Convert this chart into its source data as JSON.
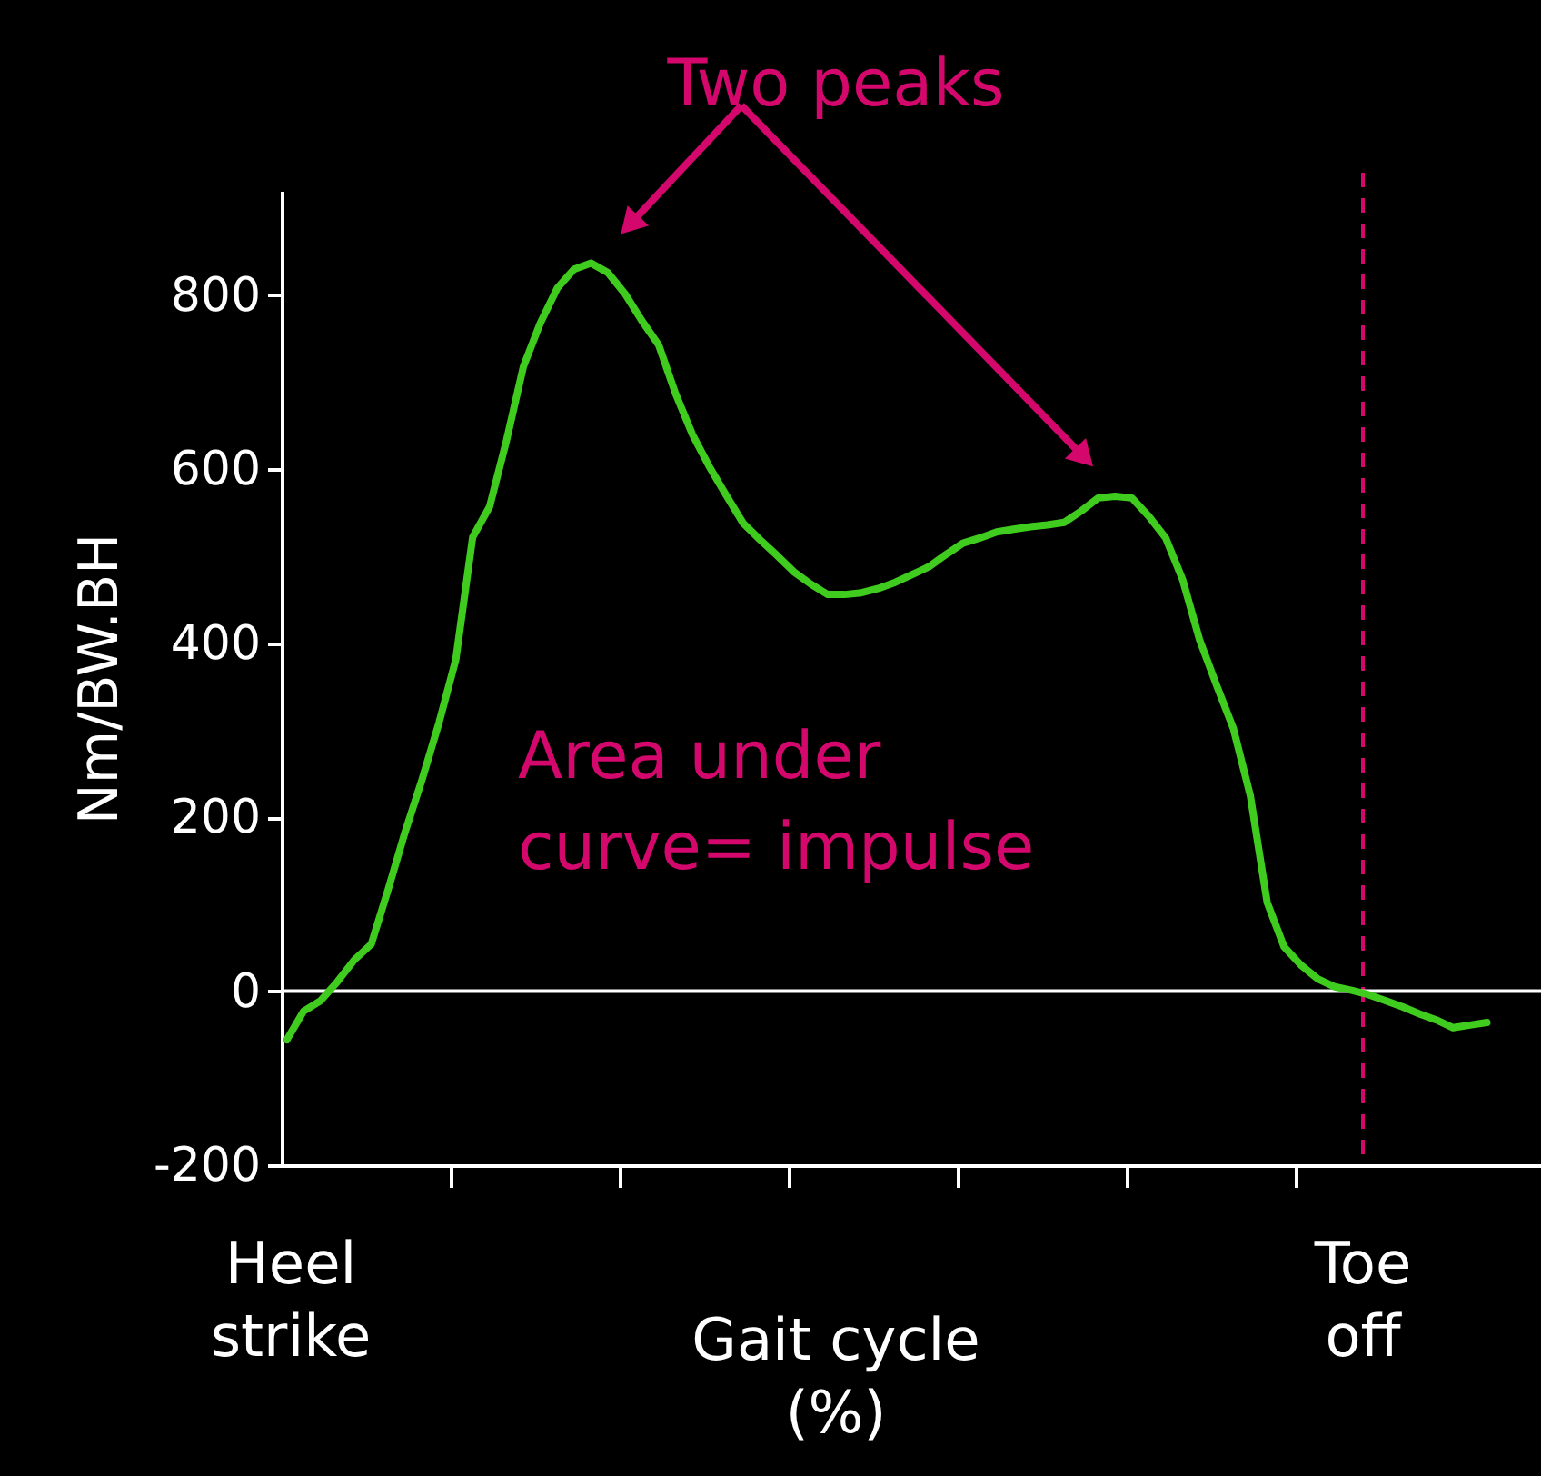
{
  "chart_data": {
    "type": "line",
    "ylabel": "Nm/BW.BH",
    "xlabel": "Gait cycle (%)",
    "annotations": [
      "Two peaks",
      "Area under curve= impulse",
      "Heel strike",
      "Toe off"
    ],
    "categories": [
      null,
      null,
      null,
      null,
      null,
      null,
      null,
      null,
      null,
      null,
      null,
      null,
      null,
      null,
      null,
      null,
      null,
      null,
      null,
      null,
      null,
      null,
      null,
      null,
      null,
      null,
      null,
      null,
      null,
      null,
      null,
      null,
      null,
      null,
      null,
      null,
      null,
      null,
      null,
      null,
      null,
      null,
      null,
      null,
      null,
      null,
      null,
      null,
      null,
      null,
      null,
      null,
      null,
      null,
      null,
      null,
      null,
      null,
      null,
      null,
      null,
      null,
      null,
      null,
      null,
      null,
      null,
      null,
      null,
      null,
      null,
      null
    ],
    "series": [
      {
        "color": "#3fcc1e",
        "values": [
          -56,
          -23,
          -11,
          11,
          36,
          54,
          117,
          183,
          243,
          308,
          381,
          522,
          557,
          633,
          718,
          768,
          808,
          830,
          837,
          826,
          802,
          771,
          743,
          687,
          640,
          603,
          570,
          538,
          519,
          501,
          482,
          468,
          456,
          456,
          458,
          463,
          470,
          479,
          488,
          502,
          515,
          521,
          528,
          531,
          534,
          536,
          539,
          552,
          567,
          569,
          567,
          546,
          521,
          473,
          404,
          352,
          302,
          225,
          102,
          51,
          30,
          14,
          5,
          1,
          -4,
          -11,
          -18,
          -26,
          -33,
          -42,
          -39,
          -36
        ]
      }
    ],
    "ylim": [
      -200,
      920
    ],
    "yticks": [
      -200,
      0,
      200,
      400,
      600,
      800
    ],
    "tick_labels": "y",
    "grid": false,
    "marker": "none",
    "line_style": "solid",
    "ref_lines": [
      {
        "axis": "y",
        "value": 0,
        "color": "#ffffff",
        "line_style": "solid"
      }
    ]
  }
}
